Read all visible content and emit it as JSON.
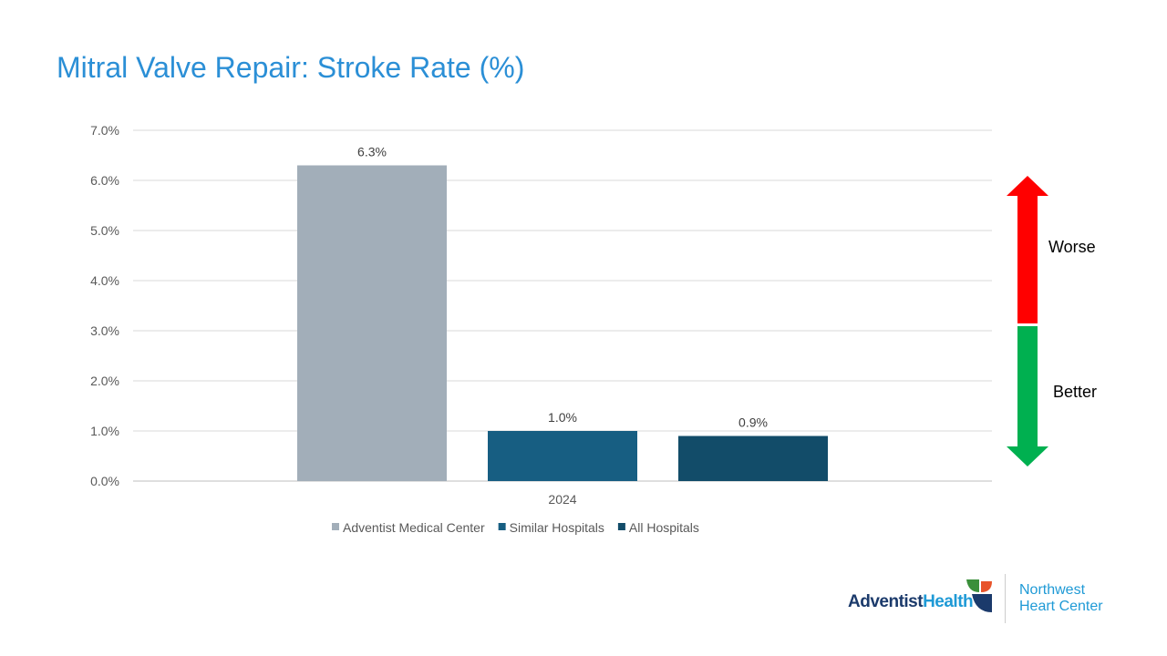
{
  "title": "Mitral Valve Repair: Stroke Rate (%)",
  "chart_data": {
    "type": "bar",
    "title": "Mitral Valve Repair: Stroke Rate (%)",
    "categories": [
      "2024"
    ],
    "series": [
      {
        "name": "Adventist Medical Center",
        "values": [
          6.3
        ],
        "label": "6.3%",
        "color": "#a2aeb9"
      },
      {
        "name": "Similar Hospitals",
        "values": [
          1.0
        ],
        "label": "1.0%",
        "color": "#175e82"
      },
      {
        "name": "All Hospitals",
        "values": [
          0.9
        ],
        "label": "0.9%",
        "color": "#124c69"
      }
    ],
    "ylim": [
      0,
      7
    ],
    "yticks": [
      "0.0%",
      "1.0%",
      "2.0%",
      "3.0%",
      "4.0%",
      "5.0%",
      "6.0%",
      "7.0%"
    ],
    "grid": true,
    "legend": "bottom"
  },
  "indicator": {
    "worse": "Worse",
    "better": "Better",
    "worse_color": "#ff0000",
    "better_color": "#00b050"
  },
  "logo": {
    "brand_a": "Adventist",
    "brand_b": "Health",
    "sub1": "Northwest",
    "sub2": "Heart Center"
  }
}
